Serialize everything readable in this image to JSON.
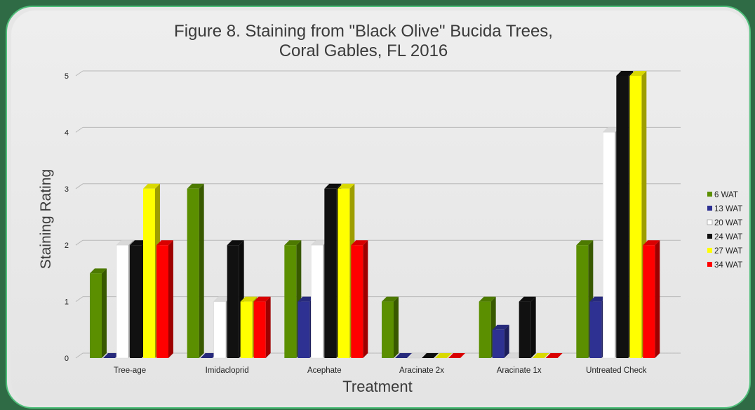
{
  "chart_data": {
    "type": "bar",
    "title": "Figure 8. Staining from \"Black Olive\" Bucida Trees,",
    "subtitle": "Coral Gables, FL 2016",
    "xlabel": "Treatment",
    "ylabel": "Staining Rating",
    "ylim": [
      0,
      5
    ],
    "yticks": [
      0,
      1,
      2,
      3,
      4,
      5
    ],
    "grid": true,
    "legend_position": "right",
    "categories": [
      "Tree-age",
      "Imidacloprid",
      "Acephate",
      "Aracinate 2x",
      "Aracinate 1x",
      "Untreated Check"
    ],
    "series": [
      {
        "name": "6 WAT",
        "color": "#5b8f00",
        "values": [
          1.5,
          3,
          2,
          1,
          1,
          2
        ]
      },
      {
        "name": "13 WAT",
        "color": "#2e3192",
        "values": [
          0,
          0,
          1,
          0,
          0.5,
          1
        ]
      },
      {
        "name": "20 WAT",
        "color": "#ffffff",
        "values": [
          2,
          1,
          2,
          0,
          0,
          4
        ]
      },
      {
        "name": "24 WAT",
        "color": "#111111",
        "values": [
          2,
          2,
          3,
          0,
          1,
          5
        ]
      },
      {
        "name": "27 WAT",
        "color": "#ffff00",
        "values": [
          3,
          1,
          3,
          0,
          0,
          5
        ]
      },
      {
        "name": "34 WAT",
        "color": "#ff0000",
        "values": [
          2,
          1,
          2,
          0,
          0,
          2
        ]
      }
    ]
  }
}
